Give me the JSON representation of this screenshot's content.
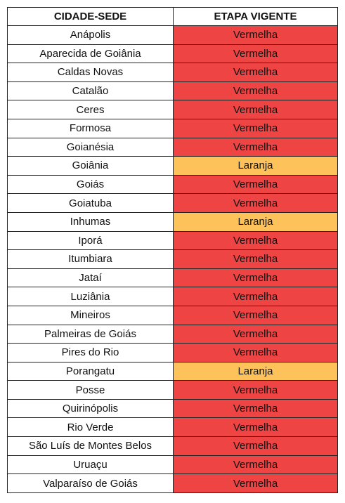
{
  "table": {
    "headers": {
      "city": "CIDADE-SEDE",
      "stage": "ETAPA VIGENTE"
    },
    "stage_colors": {
      "Vermelha": "#ee4444",
      "Laranja": "#fdc25a"
    },
    "rows": [
      {
        "city": "Anápolis",
        "stage": "Vermelha"
      },
      {
        "city": "Aparecida de Goiânia",
        "stage": "Vermelha"
      },
      {
        "city": "Caldas Novas",
        "stage": "Vermelha"
      },
      {
        "city": "Catalão",
        "stage": "Vermelha"
      },
      {
        "city": "Ceres",
        "stage": "Vermelha"
      },
      {
        "city": "Formosa",
        "stage": "Vermelha"
      },
      {
        "city": "Goianésia",
        "stage": "Vermelha"
      },
      {
        "city": "Goiânia",
        "stage": "Laranja"
      },
      {
        "city": "Goiás",
        "stage": "Vermelha"
      },
      {
        "city": "Goiatuba",
        "stage": "Vermelha"
      },
      {
        "city": "Inhumas",
        "stage": "Laranja"
      },
      {
        "city": "Iporá",
        "stage": "Vermelha"
      },
      {
        "city": "Itumbiara",
        "stage": "Vermelha"
      },
      {
        "city": "Jataí",
        "stage": "Vermelha"
      },
      {
        "city": "Luziânia",
        "stage": "Vermelha"
      },
      {
        "city": "Mineiros",
        "stage": "Vermelha"
      },
      {
        "city": "Palmeiras de Goiás",
        "stage": "Vermelha"
      },
      {
        "city": "Pires do Rio",
        "stage": "Vermelha"
      },
      {
        "city": "Porangatu",
        "stage": "Laranja"
      },
      {
        "city": "Posse",
        "stage": "Vermelha"
      },
      {
        "city": "Quirinópolis",
        "stage": "Vermelha"
      },
      {
        "city": "Rio Verde",
        "stage": "Vermelha"
      },
      {
        "city": "São Luís de Montes Belos",
        "stage": "Vermelha"
      },
      {
        "city": "Uruaçu",
        "stage": "Vermelha"
      },
      {
        "city": "Valparaíso de Goiás",
        "stage": "Vermelha"
      }
    ]
  }
}
